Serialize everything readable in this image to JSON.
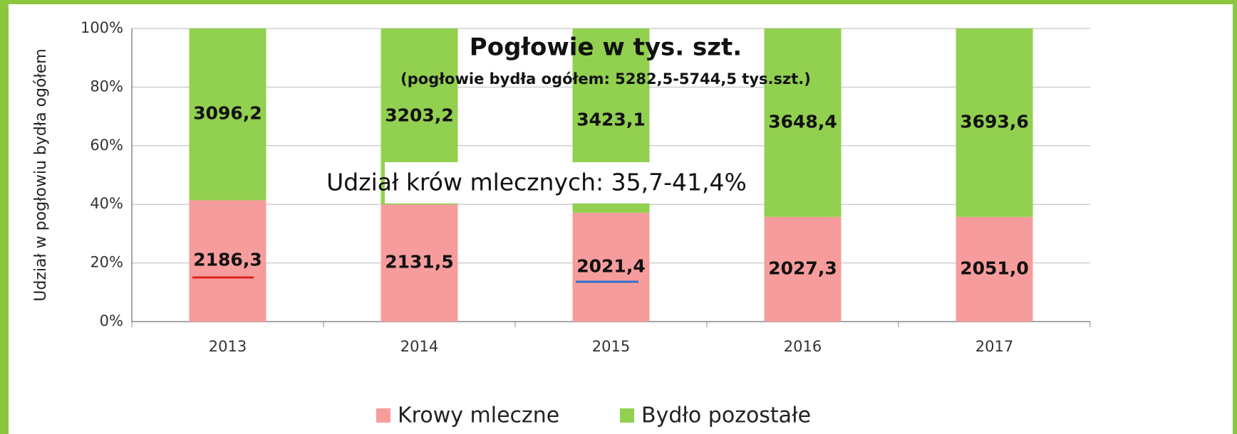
{
  "chart_data": {
    "type": "bar",
    "stacked": "percent",
    "title": "Pogłowie w tys. szt.",
    "subtitle": "(pogłowie bydła ogółem: 5282,5-5744,5 tys.szt.)",
    "annotation": "Udział krów mlecznych: 35,7-41,4%",
    "y_label": "Udział w pogłowiu bydła ogółem",
    "categories": [
      "2013",
      "2014",
      "2015",
      "2016",
      "2017"
    ],
    "series": [
      {
        "name": "Krowy mleczne",
        "color": "#f79c9c",
        "values": [
          2186.3,
          2131.5,
          2021.4,
          2027.3,
          2051.0
        ],
        "value_labels": [
          "2186,3",
          "2131,5",
          "2021,4",
          "2027,3",
          "2051,0"
        ]
      },
      {
        "name": "Bydło pozostałe",
        "color": "#92d050",
        "values": [
          3096.2,
          3203.2,
          3423.1,
          3648.4,
          3693.6
        ],
        "value_labels": [
          "3096,2",
          "3203,2",
          "3423,1",
          "3648,4",
          "3693,6"
        ]
      }
    ],
    "ylim": [
      0,
      100
    ],
    "yticks": [
      {
        "value": 0,
        "label": "0%"
      },
      {
        "value": 20,
        "label": "20%"
      },
      {
        "value": 40,
        "label": "40%"
      },
      {
        "value": 60,
        "label": "60%"
      },
      {
        "value": 80,
        "label": "80%"
      },
      {
        "value": 100,
        "label": "100%"
      }
    ],
    "grid": true,
    "legend": "bottom"
  }
}
